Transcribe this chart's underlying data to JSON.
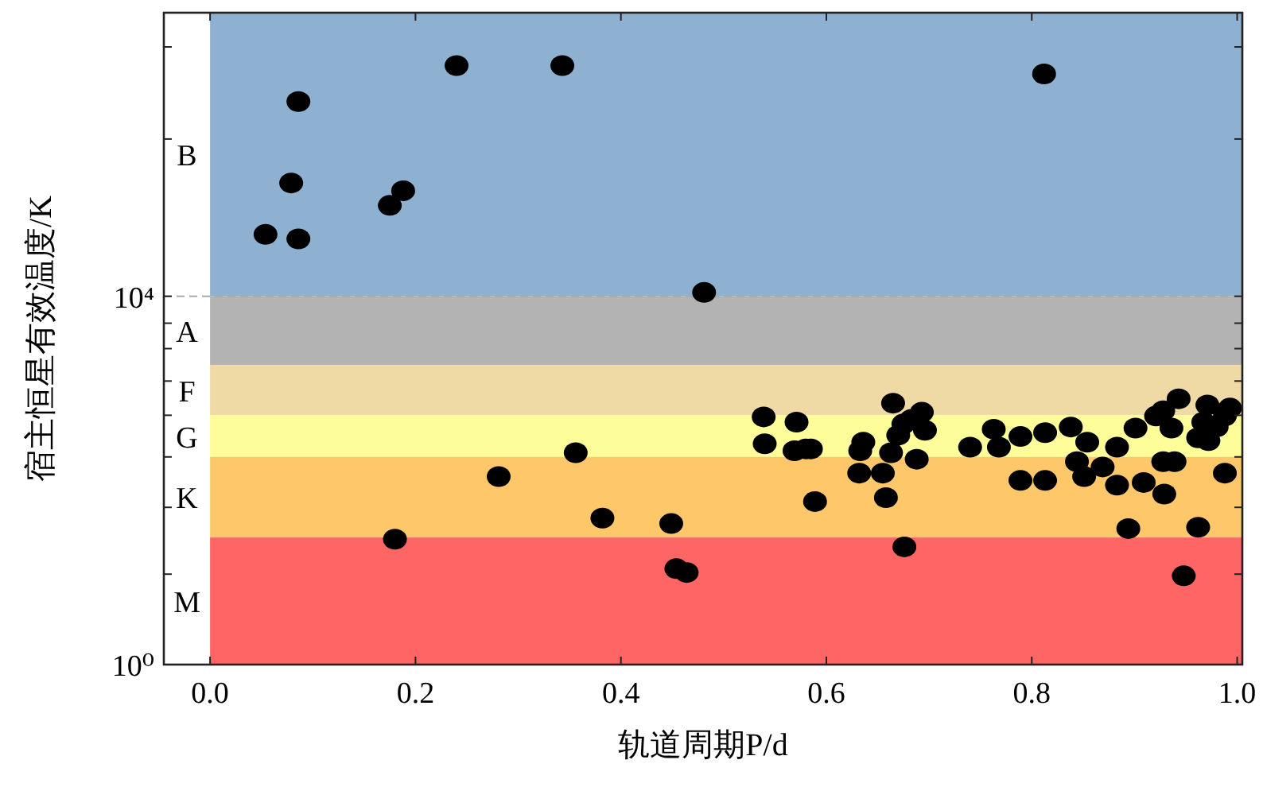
{
  "chart_data": {
    "type": "scatter",
    "xlabel": "轨道周期P/d",
    "ylabel": "宿主恒星有效温度/K",
    "log": "y",
    "grid": false,
    "marker": "circle",
    "xlim": [
      -0.045,
      1.005
    ],
    "ylim": [
      1,
      12000000
    ],
    "xticks": [
      {
        "value": 0,
        "label": "0.0"
      },
      {
        "value": 0.2,
        "label": "0.2"
      },
      {
        "value": 0.4,
        "label": "0.4"
      },
      {
        "value": 0.6,
        "label": "0.6"
      },
      {
        "value": 0.8,
        "label": "0.8"
      },
      {
        "value": 1,
        "label": "1.0"
      }
    ],
    "yticks": [
      {
        "value": 1,
        "label": "10⁰"
      },
      {
        "value": 9.6,
        "label": null
      },
      {
        "value": 51,
        "label": null
      },
      {
        "value": 180,
        "label": null
      },
      {
        "value": 510,
        "label": null
      },
      {
        "value": 1200,
        "label": null
      },
      {
        "value": 2700,
        "label": null
      },
      {
        "value": 5100,
        "label": null
      },
      {
        "value": 10000,
        "label": "10⁴"
      },
      {
        "value": 510000,
        "label": null
      },
      {
        "value": 5100000,
        "label": null
      }
    ],
    "bands": [
      {
        "axis": "y",
        "from": 10000,
        "to": 12000000,
        "label": "B",
        "color": "#8fb1d1"
      },
      {
        "axis": "y",
        "from": 1800,
        "to": 10000,
        "label": "A",
        "color": "#b3b3b3"
      },
      {
        "axis": "y",
        "from": 510,
        "to": 1800,
        "label": "F",
        "color": "#efd9a5"
      },
      {
        "axis": "y",
        "from": 180,
        "to": 510,
        "label": "G",
        "color": "#fdfd99"
      },
      {
        "axis": "y",
        "from": 24,
        "to": 180,
        "label": "K",
        "color": "#fec86a"
      },
      {
        "axis": "y",
        "from": 1,
        "to": 24,
        "label": "M",
        "color": "#fe6565"
      }
    ],
    "ref_lines": [
      {
        "axis": "y",
        "value": 10000,
        "color": "#aaaaaa",
        "line_style": "dashed"
      }
    ],
    "series": [
      {
        "color": "#000000",
        "x": [
          0.24,
          0.343,
          0.086,
          0.079,
          0.188,
          0.175,
          0.054,
          0.086,
          0.481,
          0.356,
          0.281,
          0.382,
          0.449,
          0.18,
          0.454,
          0.464,
          0.812,
          0.539,
          0.54,
          0.571,
          0.569,
          0.58,
          0.585,
          0.589,
          0.636,
          0.633,
          0.632,
          0.655,
          0.658,
          0.665,
          0.67,
          0.675,
          0.683,
          0.693,
          0.696,
          0.663,
          0.688,
          0.676,
          0.74,
          0.763,
          0.768,
          0.789,
          0.789,
          0.813,
          0.813,
          0.838,
          0.854,
          0.844,
          0.851,
          0.869,
          0.883,
          0.883,
          0.901,
          0.909,
          0.921,
          0.928,
          0.943,
          0.936,
          0.928,
          0.939,
          0.929,
          0.894,
          0.948,
          0.962,
          0.971,
          0.967,
          0.962,
          0.972,
          0.98,
          0.988,
          0.993,
          0.988
        ],
        "values": [
          3200000,
          3200000,
          1300000,
          170000,
          140000,
          97000,
          47000,
          42000,
          11000,
          200,
          110,
          39,
          34,
          23,
          11,
          10,
          2600000,
          490,
          250,
          430,
          210,
          220,
          220,
          59,
          260,
          210,
          120,
          120,
          65,
          690,
          310,
          410,
          460,
          550,
          350,
          200,
          170,
          19,
          230,
          360,
          230,
          300,
          100,
          330,
          100,
          380,
          260,
          160,
          110,
          140,
          230,
          89,
          370,
          95,
          500,
          570,
          770,
          370,
          160,
          160,
          71,
          30,
          9.2,
          31,
          660,
          430,
          290,
          270,
          380,
          500,
          610,
          120
        ]
      }
    ]
  }
}
